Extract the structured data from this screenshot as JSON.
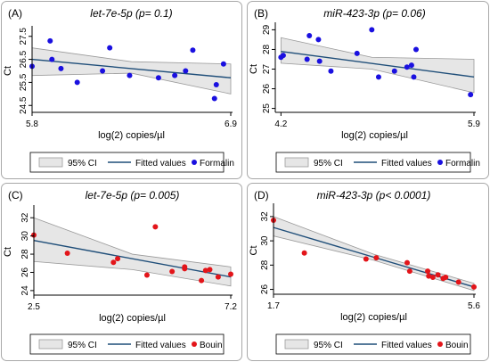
{
  "legend": {
    "ci_label": "95% CI",
    "fit_label": "Fitted values",
    "ci_color": "#e6e6e6",
    "ci_border": "#9a9a9a",
    "fit_color": "#1f4e79"
  },
  "panels": [
    {
      "letter": "(A)",
      "title": "let-7e-5p (p= 0.1)",
      "xlabel": "log(2) copies/µl",
      "ylabel": "Ct",
      "group": "Formalin",
      "point_color": "#1a10e0"
    },
    {
      "letter": "(B)",
      "title": "miR-423-3p (p= 0.06)",
      "xlabel": "log(2) copies/µl",
      "ylabel": "Ct",
      "group": "Formalin",
      "point_color": "#1a10e0"
    },
    {
      "letter": "(C)",
      "title": "let-7e-5p (p= 0.005)",
      "xlabel": "log(2) copies/µl",
      "ylabel": "Ct",
      "group": "Bouin",
      "point_color": "#e3151a"
    },
    {
      "letter": "(D)",
      "title": "miR-423-3p (p< 0.0001)",
      "xlabel": "log(2) copies/µl",
      "ylabel": "Ct",
      "group": "Bouin",
      "point_color": "#e3151a"
    }
  ],
  "chart_data": [
    {
      "type": "scatter",
      "title": "let-7e-5p (p= 0.1)",
      "xlabel": "log(2) copies/µl",
      "ylabel": "Ct",
      "xticks": [
        5.8,
        6.9
      ],
      "yticks": [
        24.5,
        25.5,
        26.5,
        27.5
      ],
      "xlim": [
        5.8,
        6.9
      ],
      "ylim": [
        24.2,
        27.8
      ],
      "series": [
        {
          "name": "Formalin",
          "x": [
            5.8,
            5.9,
            5.91,
            5.96,
            6.05,
            6.19,
            6.23,
            6.34,
            6.5,
            6.59,
            6.65,
            6.69,
            6.82,
            6.81,
            6.86
          ],
          "y": [
            26.2,
            27.3,
            26.5,
            26.1,
            25.5,
            26.0,
            27.0,
            25.8,
            25.7,
            25.8,
            26.0,
            26.9,
            25.4,
            24.8,
            26.3
          ]
        }
      ],
      "fit": {
        "x": [
          5.8,
          6.9
        ],
        "y": [
          26.5,
          25.7
        ]
      },
      "ci_upper": [
        27.0,
        26.4,
        26.3
      ],
      "ci_lower": [
        25.8,
        25.9,
        25.0
      ],
      "ci_x": [
        5.8,
        6.35,
        6.9
      ]
    },
    {
      "type": "scatter",
      "title": "miR-423-3p (p= 0.06)",
      "xlabel": "log(2) copies/µl",
      "ylabel": "Ct",
      "xticks": [
        4.2,
        5.9
      ],
      "yticks": [
        25,
        26,
        27,
        28,
        29
      ],
      "xlim": [
        4.15,
        5.9
      ],
      "ylim": [
        24.8,
        29.2
      ],
      "series": [
        {
          "name": "Formalin",
          "x": [
            4.2,
            4.22,
            4.43,
            4.45,
            4.53,
            4.54,
            4.64,
            4.87,
            5.0,
            5.06,
            5.2,
            5.31,
            5.35,
            5.37,
            5.39,
            5.87
          ],
          "y": [
            27.6,
            27.7,
            27.5,
            28.7,
            28.5,
            27.4,
            26.9,
            27.8,
            29.0,
            26.6,
            26.9,
            27.1,
            27.2,
            26.6,
            28.0,
            25.7
          ]
        }
      ],
      "fit": {
        "x": [
          4.2,
          5.9
        ],
        "y": [
          27.9,
          26.6
        ]
      },
      "ci_upper": [
        28.6,
        27.6,
        27.5
      ],
      "ci_lower": [
        27.3,
        27.0,
        25.8
      ],
      "ci_x": [
        4.2,
        5.0,
        5.9
      ]
    },
    {
      "type": "scatter",
      "title": "let-7e-5p (p= 0.005)",
      "xlabel": "log(2) copies/µl",
      "ylabel": "Ct",
      "xticks": [
        2.5,
        7.2
      ],
      "yticks": [
        24,
        26,
        28,
        30,
        32
      ],
      "xlim": [
        2.5,
        7.2
      ],
      "ylim": [
        23.5,
        33.0
      ],
      "series": [
        {
          "name": "Bouin",
          "x": [
            2.5,
            3.3,
            4.4,
            4.5,
            5.2,
            5.4,
            5.8,
            6.1,
            6.1,
            6.5,
            6.6,
            6.7,
            6.9,
            7.2
          ],
          "y": [
            30.1,
            28.1,
            27.1,
            27.5,
            25.7,
            31.0,
            26.1,
            26.4,
            26.6,
            25.1,
            26.2,
            26.3,
            25.5,
            25.8
          ]
        }
      ],
      "fit": {
        "x": [
          2.5,
          7.2
        ],
        "y": [
          29.5,
          25.5
        ]
      },
      "ci_upper": [
        32.0,
        28.0,
        26.6
      ],
      "ci_lower": [
        27.2,
        26.3,
        24.5
      ],
      "ci_x": [
        2.5,
        4.85,
        7.2
      ]
    },
    {
      "type": "scatter",
      "title": "miR-423-3p (p< 0.0001)",
      "xlabel": "log(2) copies/µl",
      "ylabel": "Ct",
      "xticks": [
        1.7,
        5.6
      ],
      "yticks": [
        26,
        28,
        30,
        32
      ],
      "xlim": [
        1.7,
        5.6
      ],
      "ylim": [
        25.6,
        32.8
      ],
      "series": [
        {
          "name": "Bouin",
          "x": [
            1.7,
            2.3,
            3.5,
            3.7,
            4.3,
            4.35,
            4.7,
            4.72,
            4.8,
            4.9,
            5.0,
            5.05,
            5.3,
            5.6
          ],
          "y": [
            31.7,
            29.0,
            28.5,
            28.6,
            28.2,
            27.5,
            27.5,
            27.1,
            27.0,
            27.2,
            26.9,
            27.0,
            26.6,
            26.2
          ]
        }
      ],
      "fit": {
        "x": [
          1.7,
          5.6
        ],
        "y": [
          31.1,
          26.2
        ]
      },
      "ci_upper": [
        32.0,
        28.9,
        26.5
      ],
      "ci_lower": [
        30.4,
        28.4,
        25.9
      ],
      "ci_x": [
        1.7,
        3.65,
        5.6
      ]
    }
  ]
}
